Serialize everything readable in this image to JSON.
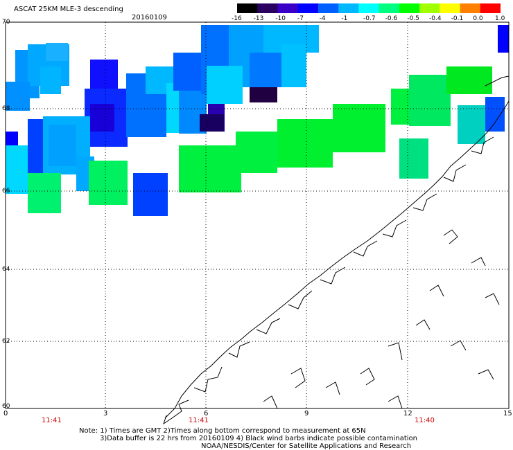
{
  "header": {
    "title": "ASCAT 25KM MLE-3 descending",
    "date": "20160109"
  },
  "colorbar": {
    "labels": [
      "-16",
      "-13",
      "-10",
      "-7",
      "-4",
      "-1",
      "-0.7",
      "-0.6",
      "-0.5",
      "-0.4",
      "-0.1",
      "0.0",
      "1.0"
    ],
    "colors": [
      "#000000",
      "#2a0060",
      "#3a00c8",
      "#0000ff",
      "#0060ff",
      "#00b8ff",
      "#00ffff",
      "#00ff80",
      "#00ff00",
      "#a0ff00",
      "#ffff00",
      "#ff8000",
      "#ff0000"
    ]
  },
  "axes": {
    "lat_labels": [
      "70",
      "68",
      "66",
      "64",
      "62",
      "60"
    ],
    "lon_labels": [
      "0",
      "3",
      "6",
      "9",
      "12",
      "15"
    ],
    "time_labels": [
      "11:41",
      "11:41",
      "11:40"
    ],
    "time_color": "#cc0000"
  },
  "note": {
    "line1": "Note: 1) Times are GMT 2)Times along bottom correspond to measurement at 65N",
    "line2": "3)Data buffer is 22 hrs from 20160109 4) Black wind barbs indicate possible contamination",
    "credit": "NOAA/NESDIS/Center for Satellite Applications and Research"
  },
  "map_data": {
    "lon_range": [
      0,
      15
    ],
    "lat_range": [
      60,
      70
    ],
    "grid": "dotted",
    "land": "coastline outline only"
  }
}
